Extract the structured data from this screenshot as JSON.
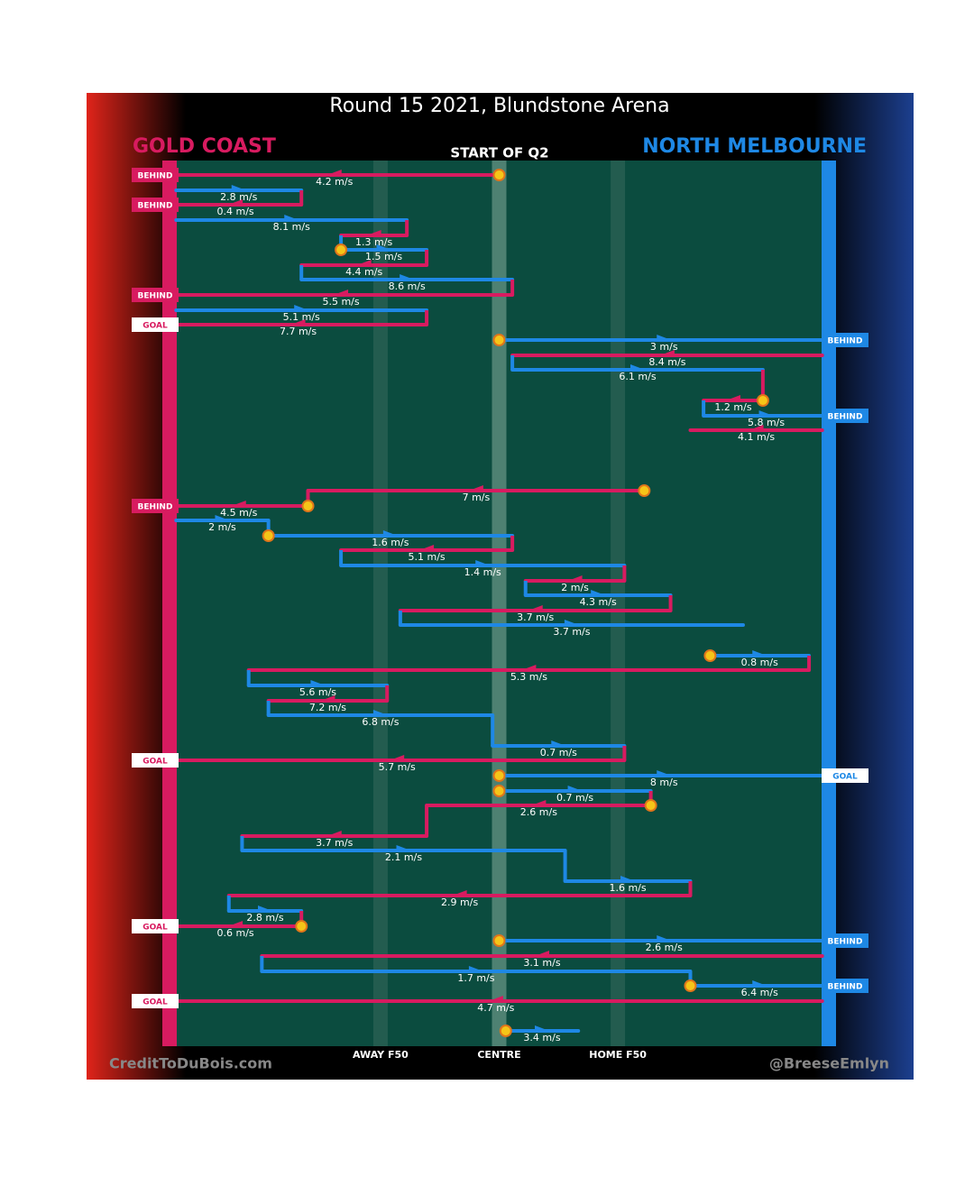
{
  "chart_data": {
    "type": "chain",
    "title": "Round 15 2021, Blundstone Arena",
    "subtitle": "START OF Q2",
    "teams": [
      {
        "name": "GOLD COAST",
        "color": "#d81b60"
      },
      {
        "name": "NORTH MELBOURNE",
        "color": "#1e88e5"
      }
    ],
    "xlim": [
      0,
      100
    ],
    "xticks": [
      {
        "value": 32,
        "label": "AWAY F50"
      },
      {
        "value": 50,
        "label": "CENTRE"
      },
      {
        "value": 68,
        "label": "HOME F50"
      }
    ],
    "credit_left": "CreditToDuBois.com",
    "credit_right": "@BreeseEmlyn",
    "segments": [
      {
        "team": 0,
        "from": 50,
        "to": 0,
        "speed": 4.2,
        "speed_label": "4.2 m/s",
        "result": "BEHIND",
        "stoppage": true
      },
      {
        "team": 1,
        "from": 1,
        "to": 20,
        "speed": 2.8,
        "speed_label": "2.8 m/s"
      },
      {
        "team": 0,
        "from": 20,
        "to": 0,
        "speed": 0.4,
        "speed_label": "0.4 m/s",
        "result": "BEHIND"
      },
      {
        "team": 1,
        "from": 1,
        "to": 36,
        "speed": 8.1,
        "speed_label": "8.1 m/s"
      },
      {
        "team": 0,
        "from": 36,
        "to": 26,
        "speed": 1.3,
        "speed_label": "1.3 m/s"
      },
      {
        "team": 1,
        "from": 26,
        "to": 39,
        "speed": 1.5,
        "speed_label": "1.5 m/s",
        "stoppage": true
      },
      {
        "team": 0,
        "from": 39,
        "to": 20,
        "speed": 4.4,
        "speed_label": "4.4 m/s"
      },
      {
        "team": 1,
        "from": 20,
        "to": 52,
        "speed": 8.6,
        "speed_label": "8.6 m/s"
      },
      {
        "team": 0,
        "from": 52,
        "to": 0,
        "speed": 5.5,
        "speed_label": "5.5 m/s",
        "result": "BEHIND"
      },
      {
        "team": 1,
        "from": 1,
        "to": 39,
        "speed": 5.1,
        "speed_label": "5.1 m/s"
      },
      {
        "team": 0,
        "from": 39,
        "to": 0,
        "speed": 7.7,
        "speed_label": "7.7 m/s",
        "result": "GOAL"
      },
      {
        "team": 1,
        "from": 50,
        "to": 100,
        "speed": 3,
        "speed_label": "3 m/s",
        "result": "BEHIND",
        "stoppage": true
      },
      {
        "team": 0,
        "from": 99,
        "to": 52,
        "speed": 8.4,
        "speed_label": "8.4 m/s"
      },
      {
        "team": 1,
        "from": 52,
        "to": 90,
        "speed": 6.1,
        "speed_label": "6.1 m/s"
      },
      {
        "team": 0,
        "from": 90,
        "to": 81,
        "speed": 1.2,
        "speed_label": "1.2 m/s",
        "stoppage": true
      },
      {
        "team": 1,
        "from": 81,
        "to": 100,
        "speed": 5.8,
        "speed_label": "5.8 m/s",
        "result": "BEHIND"
      },
      {
        "team": 0,
        "from": 99,
        "to": 79,
        "speed": 4.1,
        "speed_label": "4.1 m/s"
      },
      {
        "team": 0,
        "from": 72,
        "to": 21,
        "speed": 7,
        "speed_label": "7 m/s",
        "stoppage": true
      },
      {
        "team": 0,
        "from": 21,
        "to": 0,
        "speed": 4.5,
        "speed_label": "4.5 m/s",
        "result": "BEHIND",
        "stoppage": true
      },
      {
        "team": 1,
        "from": 1,
        "to": 15,
        "speed": 2,
        "speed_label": "2 m/s"
      },
      {
        "team": 1,
        "from": 15,
        "to": 52,
        "speed": 1.6,
        "speed_label": "1.6 m/s",
        "stoppage": true
      },
      {
        "team": 0,
        "from": 52,
        "to": 26,
        "speed": 5.1,
        "speed_label": "5.1 m/s"
      },
      {
        "team": 1,
        "from": 26,
        "to": 69,
        "speed": 1.4,
        "speed_label": "1.4 m/s"
      },
      {
        "team": 0,
        "from": 69,
        "to": 54,
        "speed": 2,
        "speed_label": "2 m/s"
      },
      {
        "team": 1,
        "from": 54,
        "to": 76,
        "speed": 4.3,
        "speed_label": "4.3 m/s"
      },
      {
        "team": 0,
        "from": 76,
        "to": 35,
        "speed": 3.7,
        "speed_label": "3.7 m/s"
      },
      {
        "team": 1,
        "from": 35,
        "to": 87,
        "speed": 3.7,
        "speed_label": "3.7 m/s"
      },
      {
        "team": 1,
        "from": 82,
        "to": 97,
        "speed": 0.8,
        "speed_label": "0.8 m/s",
        "stoppage": true
      },
      {
        "team": 0,
        "from": 97,
        "to": 12,
        "speed": 5.3,
        "speed_label": "5.3 m/s"
      },
      {
        "team": 1,
        "from": 12,
        "to": 33,
        "speed": 5.6,
        "speed_label": "5.6 m/s"
      },
      {
        "team": 0,
        "from": 33,
        "to": 15,
        "speed": 7.2,
        "speed_label": "7.2 m/s"
      },
      {
        "team": 1,
        "from": 15,
        "to": 49,
        "speed": 6.8,
        "speed_label": "6.8 m/s"
      },
      {
        "team": 1,
        "from": 49,
        "to": 69,
        "speed": 0.7,
        "speed_label": "0.7 m/s"
      },
      {
        "team": 0,
        "from": 69,
        "to": 0,
        "speed": 5.7,
        "speed_label": "5.7 m/s",
        "result": "GOAL"
      },
      {
        "team": 1,
        "from": 50,
        "to": 100,
        "speed": 8,
        "speed_label": "8 m/s",
        "result": "GOAL",
        "stoppage": true
      },
      {
        "team": 1,
        "from": 50,
        "to": 73,
        "speed": 0.7,
        "speed_label": "0.7 m/s",
        "stoppage": true
      },
      {
        "team": 0,
        "from": 73,
        "to": 39,
        "speed": 2.6,
        "speed_label": "2.6 m/s",
        "stoppage": true
      },
      {
        "team": 0,
        "from": 39,
        "to": 11,
        "speed": 3.7,
        "speed_label": "3.7 m/s"
      },
      {
        "team": 1,
        "from": 11,
        "to": 60,
        "speed": 2.1,
        "speed_label": "2.1 m/s"
      },
      {
        "team": 1,
        "from": 60,
        "to": 79,
        "speed": 1.6,
        "speed_label": "1.6 m/s"
      },
      {
        "team": 0,
        "from": 79,
        "to": 9,
        "speed": 2.9,
        "speed_label": "2.9 m/s"
      },
      {
        "team": 1,
        "from": 9,
        "to": 20,
        "speed": 2.8,
        "speed_label": "2.8 m/s"
      },
      {
        "team": 0,
        "from": 20,
        "to": 0,
        "speed": 0.6,
        "speed_label": "0.6 m/s",
        "result": "GOAL",
        "stoppage": true
      },
      {
        "team": 1,
        "from": 50,
        "to": 100,
        "speed": 2.6,
        "speed_label": "2.6 m/s",
        "result": "BEHIND",
        "stoppage": true
      },
      {
        "team": 0,
        "from": 99,
        "to": 14,
        "speed": 3.1,
        "speed_label": "3.1 m/s"
      },
      {
        "team": 1,
        "from": 14,
        "to": 79,
        "speed": 1.7,
        "speed_label": "1.7 m/s"
      },
      {
        "team": 1,
        "from": 79,
        "to": 100,
        "speed": 6.4,
        "speed_label": "6.4 m/s",
        "result": "BEHIND",
        "stoppage": true
      },
      {
        "team": 0,
        "from": 99,
        "to": 0,
        "speed": 4.7,
        "speed_label": "4.7 m/s",
        "result": "GOAL"
      },
      {
        "team": 1,
        "from": 51,
        "to": 62,
        "speed": 3.4,
        "speed_label": "3.4 m/s",
        "stoppage": true
      }
    ]
  }
}
